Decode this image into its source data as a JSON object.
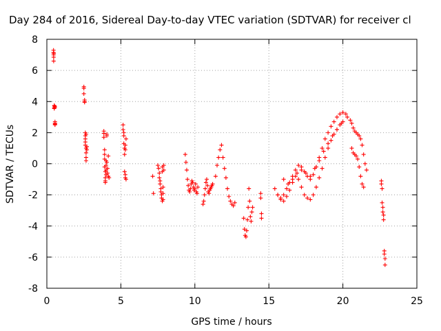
{
  "chart_data": {
    "type": "scatter",
    "title": "Day 284 of 2016, Sidereal Day-to-day VTEC variation (SDTVAR) for receiver cl",
    "xlabel": "GPS time / hours",
    "ylabel": "SDTVAR / TECUs",
    "xlim": [
      0,
      25
    ],
    "ylim": [
      -8,
      8
    ],
    "xticks": [
      0,
      5,
      10,
      15,
      20,
      25
    ],
    "yticks": [
      -8,
      -6,
      -4,
      -2,
      0,
      2,
      4,
      6,
      8
    ],
    "grid": true,
    "legend": "none",
    "marker": "+",
    "color": "#ff0000",
    "series": [
      {
        "x": [
          0.45,
          0.45,
          0.46,
          0.46,
          0.46,
          0.47,
          0.5,
          0.5,
          0.5,
          0.52,
          0.55,
          0.55,
          0.55,
          0.55,
          0.55,
          2.5,
          2.5,
          2.5,
          2.55,
          2.55,
          2.55,
          2.6,
          2.6,
          2.6,
          2.6,
          2.6,
          2.65,
          2.65,
          2.65,
          2.65,
          2.65,
          2.7,
          2.7,
          3.85,
          3.85,
          3.85,
          3.9,
          3.9,
          3.9,
          3.9,
          3.95,
          3.95,
          3.95,
          3.95,
          4.0,
          4.0,
          4.0,
          4.0,
          4.05,
          4.05,
          4.05,
          4.1,
          4.1,
          4.15,
          4.15,
          4.2,
          5.15,
          5.15,
          5.2,
          5.2,
          5.2,
          5.25,
          5.25,
          5.25,
          5.3,
          5.3,
          5.3,
          5.3,
          5.35,
          5.35,
          7.15,
          7.2,
          7.5,
          7.55,
          7.6,
          7.6,
          7.65,
          7.65,
          7.7,
          7.7,
          7.75,
          7.75,
          7.8,
          7.8,
          7.8,
          7.85,
          7.85,
          7.85,
          7.9,
          7.9,
          9.35,
          9.4,
          9.45,
          9.5,
          9.55,
          9.6,
          9.65,
          9.7,
          9.75,
          9.8,
          9.85,
          9.9,
          9.95,
          10.0,
          10.05,
          10.1,
          10.15,
          10.2,
          10.55,
          10.6,
          10.65,
          10.7,
          10.75,
          10.8,
          10.85,
          10.9,
          10.95,
          11.0,
          11.05,
          11.1,
          11.15,
          11.2,
          11.4,
          11.5,
          11.6,
          11.7,
          11.8,
          11.9,
          12.0,
          12.1,
          12.2,
          12.3,
          12.4,
          12.5,
          12.6,
          12.7,
          13.3,
          13.35,
          13.4,
          13.45,
          13.5,
          13.55,
          13.6,
          13.65,
          13.7,
          13.75,
          13.8,
          13.85,
          13.9,
          14.45,
          14.45,
          14.5,
          14.5,
          15.4,
          15.6,
          15.8,
          16.0,
          16.2,
          16.4,
          16.6,
          16.8,
          17.0,
          17.2,
          17.4,
          17.6,
          17.8,
          18.0,
          18.2,
          18.4,
          18.6,
          18.8,
          19.0,
          19.2,
          19.4,
          19.6,
          19.8,
          20.0,
          20.2,
          20.3,
          15.6,
          15.8,
          16.0,
          16.2,
          16.4,
          16.6,
          16.8,
          17.0,
          17.2,
          17.4,
          17.6,
          17.8,
          18.0,
          18.2,
          18.4,
          18.6,
          18.8,
          19.0,
          19.2,
          19.4,
          19.6,
          19.8,
          20.0,
          16.0,
          16.3,
          16.6,
          16.9,
          17.2,
          17.5,
          17.8,
          18.1,
          18.4,
          18.7,
          19.0,
          19.3,
          19.6,
          19.9,
          20.5,
          20.6,
          20.7,
          20.8,
          20.9,
          21.0,
          21.1,
          21.2,
          21.3,
          21.4,
          21.5,
          21.6,
          20.6,
          20.7,
          20.8,
          20.9,
          21.0,
          21.1,
          21.2,
          21.3,
          21.4,
          22.6,
          22.6,
          22.65,
          22.65,
          22.7,
          22.7,
          22.75,
          22.75,
          22.8,
          22.8,
          22.85,
          22.85
        ],
        "y": [
          7.3,
          7.15,
          7.0,
          6.85,
          6.6,
          7.1,
          3.6,
          3.75,
          3.55,
          3.7,
          2.6,
          2.5,
          2.7,
          2.55,
          3.65,
          4.95,
          4.85,
          4.5,
          4.1,
          3.95,
          4.0,
          2.0,
          1.8,
          1.6,
          1.4,
          1.2,
          1.0,
          0.7,
          0.4,
          0.2,
          1.9,
          1.1,
          0.9,
          2.1,
          1.95,
          1.7,
          0.9,
          0.6,
          0.3,
          -0.2,
          -0.5,
          -0.9,
          -1.1,
          -1.2,
          0.2,
          -0.1,
          -0.4,
          -0.7,
          1.8,
          1.9,
          0.1,
          -0.3,
          -0.6,
          -0.8,
          0.5,
          -0.9,
          2.5,
          2.2,
          2.0,
          1.8,
          1.3,
          1.0,
          0.6,
          -0.5,
          -0.7,
          -0.9,
          1.2,
          0.9,
          -1.0,
          1.6,
          -0.8,
          -1.9,
          -0.1,
          -0.3,
          -0.6,
          -0.9,
          -1.1,
          -1.3,
          -1.6,
          -1.8,
          -2.0,
          -2.2,
          -2.4,
          -0.2,
          -0.5,
          -1.5,
          -1.9,
          -2.3,
          -0.1,
          -0.4,
          0.6,
          0.1,
          -0.4,
          -1.0,
          -1.4,
          -1.7,
          -1.8,
          -1.6,
          -1.3,
          -1.1,
          -1.2,
          -1.5,
          -1.7,
          -1.6,
          -1.3,
          -1.8,
          -1.9,
          -1.5,
          -2.6,
          -2.4,
          -2.0,
          -1.6,
          -1.2,
          -1.0,
          -1.4,
          -1.8,
          -1.9,
          -1.7,
          -1.6,
          -1.5,
          -1.4,
          -1.3,
          -0.8,
          -0.1,
          0.4,
          0.9,
          1.2,
          0.4,
          -0.3,
          -0.9,
          -1.6,
          -2.1,
          -2.4,
          -2.6,
          -2.7,
          -2.5,
          -3.5,
          -4.2,
          -4.6,
          -4.7,
          -4.3,
          -3.6,
          -2.8,
          -1.6,
          -2.4,
          -3.4,
          -3.7,
          -3.1,
          -2.8,
          -2.2,
          -1.9,
          -3.2,
          -3.5,
          -1.6,
          -2.0,
          -2.2,
          -2.0,
          -1.6,
          -1.2,
          -0.8,
          -0.4,
          -0.1,
          -0.2,
          -0.5,
          -0.8,
          -1.0,
          -0.7,
          -0.2,
          0.4,
          1.0,
          1.6,
          2.0,
          2.4,
          2.7,
          3.0,
          3.2,
          3.3,
          3.2,
          3.0,
          -2.0,
          -2.3,
          -2.4,
          -2.1,
          -1.7,
          -1.2,
          -0.8,
          -1.0,
          -1.5,
          -2.0,
          -2.2,
          -2.3,
          -2.0,
          -1.5,
          -0.9,
          -0.3,
          0.4,
          1.0,
          1.5,
          1.9,
          2.2,
          2.5,
          2.7,
          -1.0,
          -1.3,
          -1.0,
          -0.6,
          -0.4,
          -0.6,
          -0.8,
          -0.3,
          0.2,
          0.8,
          1.3,
          1.8,
          2.2,
          2.6,
          2.8,
          2.6,
          2.3,
          2.1,
          2.0,
          1.9,
          1.8,
          1.6,
          1.2,
          0.6,
          0.0,
          -0.4,
          1.0,
          0.7,
          0.6,
          0.5,
          0.3,
          -0.2,
          -0.8,
          -1.3,
          -1.5,
          -1.1,
          -1.3,
          -1.6,
          -2.5,
          -2.8,
          -3.1,
          -3.3,
          -3.6,
          -5.6,
          -5.8,
          -6.1,
          -6.5
        ]
      }
    ]
  }
}
